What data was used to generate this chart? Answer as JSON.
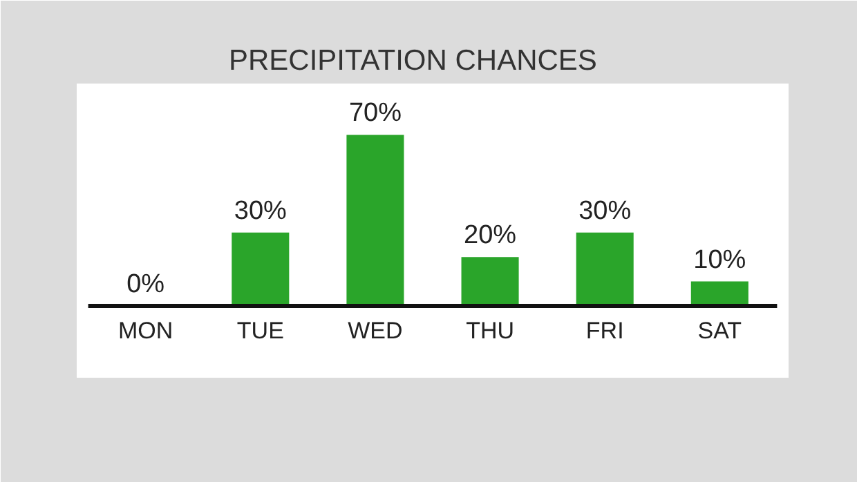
{
  "chart_data": {
    "type": "bar",
    "title": "PRECIPITATION CHANCES",
    "categories": [
      "MON",
      "TUE",
      "WED",
      "THU",
      "FRI",
      "SAT"
    ],
    "values": [
      0,
      30,
      70,
      20,
      30,
      10
    ],
    "color": "#2aa52a",
    "value_labels": [
      "0%",
      "30%",
      "70%",
      "20%",
      "30%",
      "10%"
    ],
    "grid": false
  }
}
